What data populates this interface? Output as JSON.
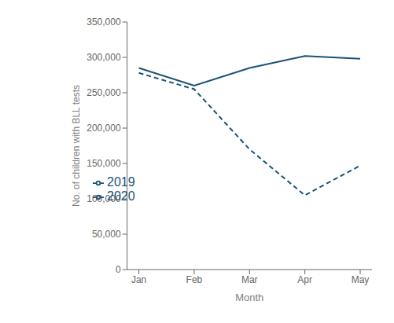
{
  "chart_data": {
    "type": "line",
    "categories": [
      "Jan",
      "Feb",
      "Mar",
      "Apr",
      "May"
    ],
    "series": [
      {
        "name": "2019",
        "color": "#1a5276",
        "line_style": "solid",
        "values": [
          285000,
          260000,
          285000,
          302000,
          298000
        ]
      },
      {
        "name": "2020",
        "color": "#1a5276",
        "line_style": "dashed",
        "values": [
          278000,
          255000,
          170000,
          105000,
          147000
        ]
      }
    ],
    "xlabel": "Month",
    "ylabel": "No. of children with BLL tests",
    "ylim": [
      0,
      350000
    ],
    "yticks": [
      0,
      {
        "value": 50000,
        "label": "50,000"
      },
      {
        "value": 100000,
        "label": "100,000"
      },
      {
        "value": 150000,
        "label": "150,000"
      },
      {
        "value": 200000,
        "label": "200,000"
      },
      {
        "value": 250000,
        "label": "250,000"
      },
      {
        "value": 300000,
        "label": "300,000"
      },
      {
        "value": 350000,
        "label": "350,000"
      }
    ],
    "legend": "lower left"
  }
}
